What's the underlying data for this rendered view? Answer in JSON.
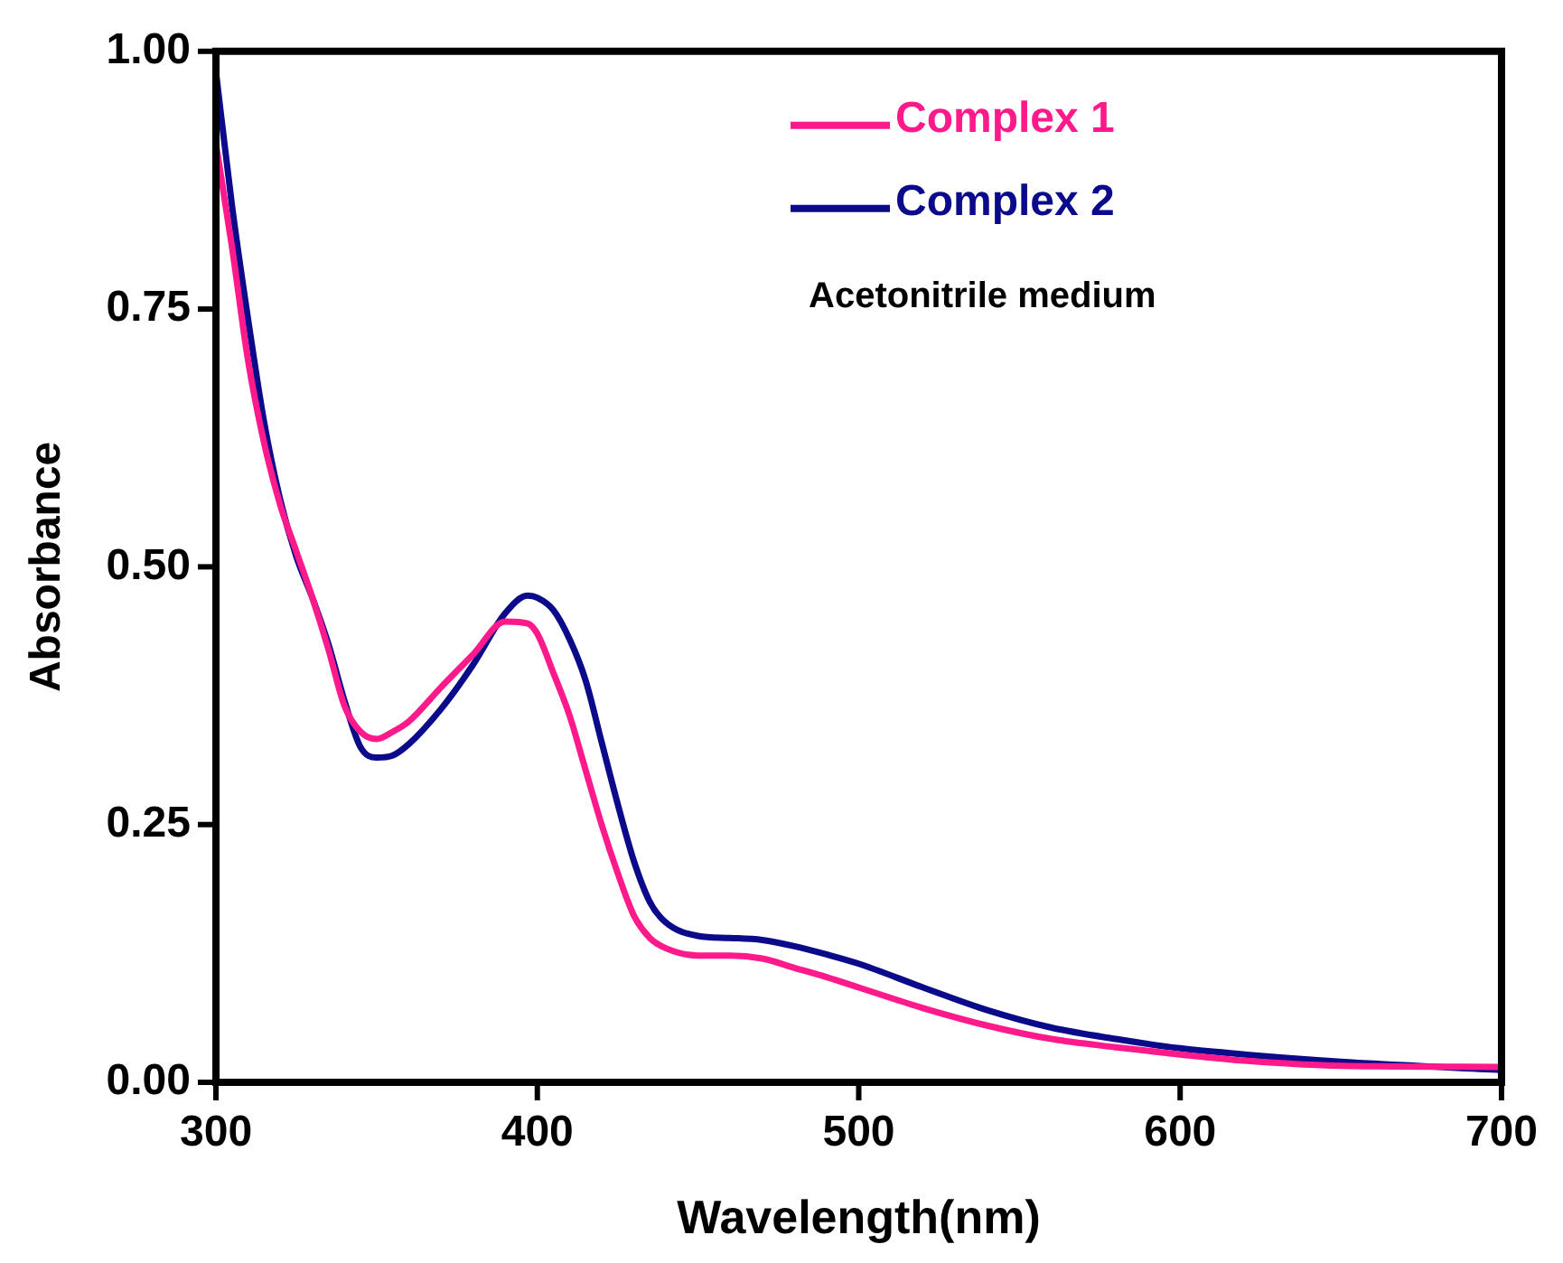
{
  "chart_data": {
    "type": "line",
    "xlabel": "Wavelength(nm)",
    "ylabel": "Absorbance",
    "xlim": [
      300,
      700
    ],
    "xticks": [
      300,
      400,
      500,
      600,
      700
    ],
    "ylim": [
      0,
      1
    ],
    "yticks": [
      {
        "value": 0,
        "label": "0.00"
      },
      {
        "value": 0.25,
        "label": "0.25"
      },
      {
        "value": 0.5,
        "label": "0.50"
      },
      {
        "value": 0.75,
        "label": "0.75"
      },
      {
        "value": 1,
        "label": "1.00"
      }
    ],
    "grid": false,
    "legend": "top right",
    "marker": "none",
    "line_style": "solid",
    "annotations": [
      "Acetonitrile medium"
    ],
    "x": [
      300,
      305,
      310,
      315,
      320,
      325,
      330,
      335,
      340,
      345,
      350,
      355,
      360,
      370,
      380,
      390,
      397,
      400,
      405,
      410,
      415,
      420,
      425,
      430,
      435,
      440,
      450,
      460,
      470,
      480,
      490,
      500,
      520,
      540,
      560,
      580,
      600,
      620,
      650,
      700
    ],
    "series": [
      {
        "name": "Complex 1",
        "color": "#ff1a8c",
        "values": [
          0.91,
          0.81,
          0.7,
          0.62,
          0.56,
          0.515,
          0.47,
          0.42,
          0.365,
          0.34,
          0.333,
          0.34,
          0.35,
          0.383,
          0.415,
          0.447,
          0.445,
          0.435,
          0.397,
          0.356,
          0.303,
          0.25,
          0.203,
          0.162,
          0.14,
          0.13,
          0.123,
          0.123,
          0.12,
          0.111,
          0.102,
          0.092,
          0.072,
          0.055,
          0.042,
          0.034,
          0.027,
          0.021,
          0.016,
          0.015
        ]
      },
      {
        "name": "Complex 2",
        "color": "#0a0a8a",
        "values": [
          0.98,
          0.85,
          0.74,
          0.64,
          0.565,
          0.51,
          0.47,
          0.425,
          0.37,
          0.325,
          0.315,
          0.317,
          0.328,
          0.362,
          0.405,
          0.455,
          0.472,
          0.47,
          0.458,
          0.43,
          0.39,
          0.33,
          0.27,
          0.215,
          0.175,
          0.155,
          0.142,
          0.14,
          0.138,
          0.132,
          0.124,
          0.115,
          0.092,
          0.07,
          0.053,
          0.042,
          0.033,
          0.027,
          0.02,
          0.012
        ]
      }
    ]
  }
}
